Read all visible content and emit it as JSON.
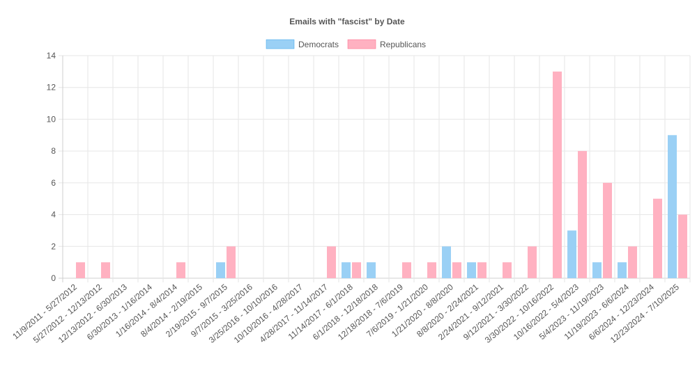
{
  "chart_data": {
    "type": "bar",
    "title": "Emails with \"fascist\" by Date",
    "legend_position": "top-center",
    "grid": true,
    "ylim": [
      0,
      14
    ],
    "yticks": [
      0,
      2,
      4,
      6,
      8,
      10,
      12,
      14
    ],
    "categories": [
      "11/9/2011 - 5/27/2012",
      "5/27/2012 - 12/13/2012",
      "12/13/2012 - 6/30/2013",
      "6/30/2013 - 1/16/2014",
      "1/16/2014 - 8/4/2014",
      "8/4/2014 - 2/19/2015",
      "2/19/2015 - 9/7/2015",
      "9/7/2015 - 3/25/2016",
      "3/25/2016 - 10/10/2016",
      "10/10/2016 - 4/28/2017",
      "4/28/2017 - 11/14/2017",
      "11/14/2017 - 6/1/2018",
      "6/1/2018 - 12/18/2018",
      "12/18/2018 - 7/6/2019",
      "7/6/2019 - 1/21/2020",
      "1/21/2020 - 8/8/2020",
      "8/8/2020 - 2/24/2021",
      "2/24/2021 - 9/12/2021",
      "9/12/2021 - 3/30/2022",
      "3/30/2022 - 10/16/2022",
      "10/16/2022 - 5/4/2023",
      "5/4/2023 - 11/19/2023",
      "11/19/2023 - 6/6/2024",
      "6/6/2024 - 12/23/2024",
      "12/23/2024 - 7/10/2025"
    ],
    "series": [
      {
        "name": "Democrats",
        "color": "#9AD0F5",
        "border": "#36A2EB",
        "values": [
          0,
          0,
          0,
          0,
          0,
          0,
          1,
          0,
          0,
          0,
          0,
          1,
          1,
          0,
          0,
          2,
          1,
          0,
          0,
          0,
          3,
          1,
          1,
          0,
          9
        ]
      },
      {
        "name": "Republicans",
        "color": "#FFB1C1",
        "border": "#FF6384",
        "values": [
          1,
          1,
          0,
          0,
          1,
          0,
          2,
          0,
          0,
          0,
          2,
          1,
          0,
          1,
          1,
          1,
          1,
          1,
          2,
          13,
          8,
          6,
          2,
          5,
          4
        ]
      }
    ]
  }
}
